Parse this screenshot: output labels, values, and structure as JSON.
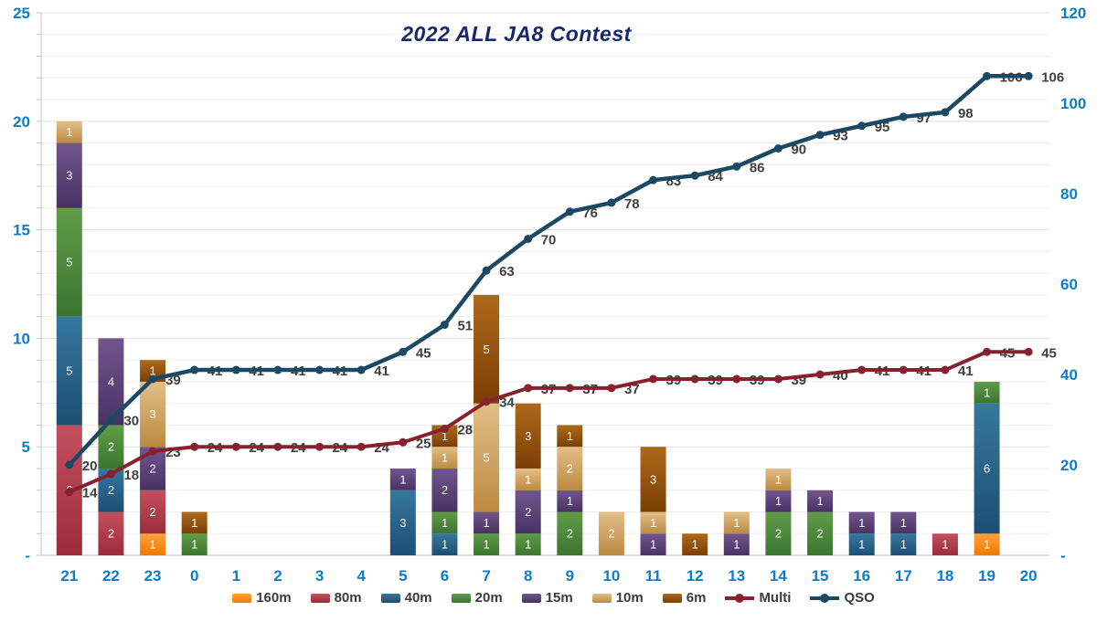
{
  "title": "2022 ALL JA8 Contest",
  "colors": {
    "title": "#14286B",
    "axis_labels": "#0E7CC7",
    "data_labels": "#3F3F3F",
    "bar_value_labels": "#FFFFFF",
    "grid_minor": "#EDEDED",
    "grid_major": "#E1E1E1",
    "axis_line": "#C6C6C6",
    "baseline": "#BFBFBF"
  },
  "chart_data": {
    "type": "combo-stacked-bar-line",
    "title": "2022 ALL JA8 Contest",
    "categories": [
      "21",
      "22",
      "23",
      "0",
      "1",
      "2",
      "3",
      "4",
      "5",
      "6",
      "7",
      "8",
      "9",
      "10",
      "11",
      "12",
      "13",
      "14",
      "15",
      "16",
      "17",
      "18",
      "19",
      "20"
    ],
    "xlabel": "",
    "ylabel_left": "",
    "ylabel_right": "",
    "grid": true,
    "legend_position": "bottom",
    "stacked_bar_series": [
      {
        "name": "160m",
        "color_light": "#FFA13C",
        "color_dark": "#EE7A00",
        "values": [
          0,
          0,
          1,
          0,
          0,
          0,
          0,
          0,
          0,
          0,
          0,
          0,
          0,
          0,
          0,
          0,
          0,
          0,
          0,
          0,
          0,
          0,
          1,
          0
        ]
      },
      {
        "name": "80m",
        "color_light": "#C4505F",
        "color_dark": "#9C2B3C",
        "values": [
          6,
          2,
          2,
          0,
          0,
          0,
          0,
          0,
          0,
          0,
          0,
          0,
          0,
          0,
          0,
          0,
          0,
          0,
          0,
          0,
          0,
          1,
          0,
          0
        ]
      },
      {
        "name": "40m",
        "color_light": "#37789E",
        "color_dark": "#1C4E72",
        "values": [
          5,
          2,
          0,
          0,
          0,
          0,
          0,
          0,
          3,
          1,
          0,
          0,
          0,
          0,
          0,
          0,
          0,
          0,
          0,
          1,
          1,
          0,
          6,
          0
        ]
      },
      {
        "name": "20m",
        "color_light": "#619C49",
        "color_dark": "#3B7530",
        "values": [
          5,
          2,
          0,
          1,
          0,
          0,
          0,
          0,
          0,
          1,
          1,
          1,
          2,
          0,
          0,
          0,
          0,
          2,
          2,
          0,
          0,
          0,
          1,
          0
        ]
      },
      {
        "name": "15m",
        "color_light": "#71568C",
        "color_dark": "#483264",
        "values": [
          3,
          4,
          2,
          0,
          0,
          0,
          0,
          0,
          1,
          2,
          1,
          2,
          1,
          0,
          1,
          0,
          1,
          1,
          1,
          1,
          1,
          0,
          0,
          0
        ]
      },
      {
        "name": "10m",
        "color_light": "#E3BE88",
        "color_dark": "#BB8A40",
        "values": [
          1,
          0,
          3,
          0,
          0,
          0,
          0,
          0,
          0,
          1,
          5,
          1,
          2,
          2,
          1,
          0,
          1,
          1,
          0,
          0,
          0,
          0,
          0,
          0
        ]
      },
      {
        "name": "6m",
        "color_light": "#AE691A",
        "color_dark": "#7B3F05",
        "values": [
          0,
          0,
          1,
          1,
          0,
          0,
          0,
          0,
          0,
          1,
          5,
          3,
          1,
          0,
          3,
          1,
          0,
          0,
          0,
          0,
          0,
          0,
          0,
          0
        ]
      }
    ],
    "line_series": [
      {
        "name": "Multi",
        "color": "#87212E",
        "axis": "right",
        "values": [
          14,
          18,
          23,
          24,
          24,
          24,
          24,
          24,
          25,
          28,
          34,
          37,
          37,
          37,
          39,
          39,
          39,
          39,
          40,
          41,
          41,
          41,
          45,
          45
        ]
      },
      {
        "name": "QSO",
        "color": "#1B4963",
        "axis": "right",
        "values": [
          20,
          30,
          39,
          41,
          41,
          41,
          41,
          41,
          45,
          51,
          63,
          70,
          76,
          78,
          83,
          84,
          86,
          90,
          93,
          95,
          97,
          98,
          106,
          106
        ]
      }
    ],
    "left_axis": {
      "min": 0,
      "max": 25,
      "tick_values": [
        25,
        20,
        15,
        10,
        5,
        0
      ],
      "tick_labels": [
        "25",
        "20",
        "15",
        "10",
        "5",
        "-"
      ]
    },
    "right_axis": {
      "min": 0,
      "max": 120,
      "tick_values": [
        120,
        100,
        80,
        60,
        40,
        20,
        0
      ],
      "tick_labels": [
        "120",
        "100",
        "80",
        "60",
        "40",
        "20",
        "-"
      ]
    },
    "legend_items": [
      "160m",
      "80m",
      "40m",
      "20m",
      "15m",
      "10m",
      "6m",
      "Multi",
      "QSO"
    ]
  }
}
